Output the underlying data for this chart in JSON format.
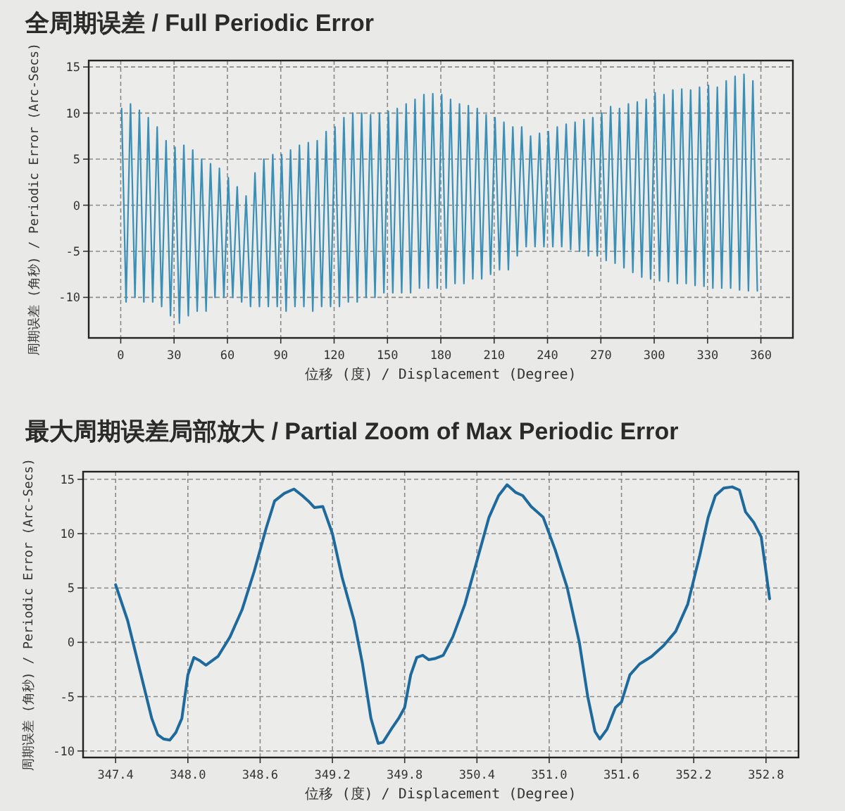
{
  "chart_data": [
    {
      "type": "line",
      "title": "全周期误差 / Full Periodic Error",
      "xlabel": "位移 (度) / Displacement (Degree)",
      "ylabel": "周期误差 (角秒) / Periodic Error (Arc-Secs)",
      "xlim": [
        -18,
        378
      ],
      "ylim": [
        -14.4,
        15.7
      ],
      "xticks": [
        0,
        30,
        60,
        90,
        120,
        150,
        180,
        210,
        240,
        270,
        300,
        330,
        360
      ],
      "yticks": [
        -10,
        -5,
        0,
        5,
        10,
        15
      ],
      "grid": true,
      "series": [
        {
          "color": "#3a8fb7",
          "x": [
            0.5,
            3,
            5.5,
            8,
            10.5,
            13,
            15.5,
            18,
            20.5,
            23,
            25.5,
            28,
            30.5,
            33,
            35.5,
            38,
            40.5,
            43,
            45.5,
            48,
            50.5,
            53,
            55.5,
            58,
            60.5,
            63,
            65.5,
            68,
            70.5,
            73,
            75.5,
            78,
            80.5,
            83,
            85.5,
            88,
            90.5,
            93,
            95.5,
            98,
            100.5,
            103,
            105.5,
            108,
            110.5,
            113,
            115.5,
            118,
            120.5,
            123,
            125.5,
            128,
            130.5,
            133,
            135.5,
            138,
            140.5,
            143,
            145.5,
            148,
            150.5,
            153,
            155.5,
            158,
            160.5,
            163,
            165.5,
            168,
            170.5,
            173,
            175.5,
            178,
            180.5,
            183,
            185.5,
            188,
            190.5,
            193,
            195.5,
            198,
            200.5,
            203,
            205.5,
            208,
            210.5,
            213,
            215.5,
            218,
            220.5,
            223,
            225.5,
            228,
            230.5,
            233,
            235.5,
            238,
            240.5,
            243,
            245.5,
            248,
            250.5,
            253,
            255.5,
            258,
            260.5,
            263,
            265.5,
            268,
            270.5,
            273,
            275.5,
            278,
            280.5,
            283,
            285.5,
            288,
            290.5,
            293,
            295.5,
            298,
            300.5,
            303,
            305.5,
            308,
            310.5,
            313,
            315.5,
            318,
            320.5,
            323,
            325.5,
            328,
            330.5,
            333,
            335.5,
            338,
            340.5,
            343,
            345.5,
            348,
            350.5,
            353,
            355.5,
            358
          ],
          "values": [
            10.5,
            -10.5,
            11,
            -10,
            10.3,
            -10.5,
            9.5,
            -10.5,
            8.5,
            -11,
            7,
            -12,
            6.3,
            -12.8,
            6.5,
            -12,
            6,
            -11.5,
            5,
            -11.5,
            4.5,
            -10,
            4,
            -10,
            3,
            -10,
            2,
            -10.5,
            1,
            -11,
            3.5,
            -11,
            5,
            -11,
            5.5,
            -11,
            5.5,
            -11.5,
            6,
            -11,
            6.5,
            -11,
            6.8,
            -11.5,
            7,
            -11,
            8,
            -11,
            8.5,
            -11,
            9.5,
            -10.5,
            10,
            -10.5,
            10,
            -10,
            9.8,
            -10,
            10,
            -9.5,
            10.2,
            -9.5,
            10.5,
            -9.5,
            11,
            -9.5,
            11.5,
            -9,
            12,
            -9,
            12.1,
            -9,
            12,
            -9,
            11.5,
            -8.5,
            11,
            -8.5,
            10.8,
            -8,
            10.5,
            -8,
            9.8,
            -7.5,
            9.5,
            -7,
            9,
            -7,
            8.5,
            -5.5,
            8.5,
            -4.5,
            7.5,
            -4.5,
            7.8,
            -4.5,
            8,
            -4.5,
            8.5,
            -4.5,
            8.8,
            -4.8,
            9,
            -5,
            9.3,
            -5.5,
            9.5,
            -5.5,
            10,
            -6,
            10.7,
            -6.3,
            10.5,
            -6.8,
            11,
            -7.3,
            11.2,
            -7.8,
            11.5,
            -8,
            12.2,
            -8.2,
            12,
            -8.3,
            12.5,
            -8.5,
            12.6,
            -8.5,
            12.5,
            -8.7,
            12.8,
            -8.8,
            13,
            -9,
            12.8,
            -9,
            13.5,
            -9,
            14,
            -9.2,
            14.2,
            -9.3,
            13.5,
            -9.3
          ]
        }
      ]
    },
    {
      "type": "line",
      "title": "最大周期误差局部放大 / Partial Zoom of Max Periodic Error",
      "xlabel": "位移 (度) / Displacement (Degree)",
      "ylabel": "周期误差 (角秒) / Periodic Error (Arc-Secs)",
      "xlim": [
        347.13,
        353.07
      ],
      "ylim": [
        -10.6,
        15.7
      ],
      "xticks": [
        347.4,
        {
          "value": 348,
          "label": "348.0"
        },
        348.6,
        349.2,
        349.8,
        350.4,
        {
          "value": 351,
          "label": "351.0"
        },
        351.6,
        352.2,
        352.8
      ],
      "yticks": [
        -10,
        -5,
        0,
        5,
        10,
        15
      ],
      "grid": true,
      "series": [
        {
          "color": "#1f6a9c",
          "x": [
            347.4,
            347.5,
            347.6,
            347.7,
            347.75,
            347.8,
            347.85,
            347.9,
            347.95,
            348.0,
            348.05,
            348.1,
            348.15,
            348.25,
            348.35,
            348.45,
            348.55,
            348.65,
            348.72,
            348.8,
            348.88,
            348.95,
            349.0,
            349.05,
            349.12,
            349.2,
            349.28,
            349.38,
            349.45,
            349.52,
            349.58,
            349.62,
            349.7,
            349.75,
            349.8,
            349.85,
            349.9,
            349.95,
            350.0,
            350.05,
            350.12,
            350.2,
            350.3,
            350.4,
            350.5,
            350.58,
            350.65,
            350.72,
            350.78,
            350.85,
            350.95,
            351.05,
            351.15,
            351.25,
            351.32,
            351.38,
            351.42,
            351.48,
            351.55,
            351.6,
            351.67,
            351.75,
            351.85,
            351.95,
            352.05,
            352.15,
            352.25,
            352.32,
            352.38,
            352.45,
            352.52,
            352.58,
            352.63,
            352.7,
            352.76,
            352.8,
            352.83
          ],
          "values": [
            5.3,
            2,
            -2.5,
            -7,
            -8.5,
            -8.9,
            -9,
            -8.3,
            -7,
            -3,
            -1.4,
            -1.7,
            -2.1,
            -1.3,
            0.5,
            3,
            6.5,
            10.5,
            13,
            13.7,
            14.1,
            13.5,
            13,
            12.4,
            12.5,
            10,
            6,
            2,
            -2,
            -7,
            -9.3,
            -9.2,
            -7.8,
            -7,
            -6,
            -3,
            -1.4,
            -1.2,
            -1.6,
            -1.5,
            -1.2,
            0.5,
            3.5,
            7.5,
            11.5,
            13.5,
            14.5,
            13.8,
            13.5,
            12.5,
            11.5,
            8.5,
            5,
            0,
            -5,
            -8.2,
            -8.9,
            -8,
            -6,
            -5.5,
            -3,
            -2,
            -1.3,
            -0.3,
            1,
            3.5,
            8,
            11.5,
            13.5,
            14.2,
            14.3,
            14,
            12,
            11,
            9.7,
            6.5,
            4
          ]
        }
      ]
    }
  ]
}
